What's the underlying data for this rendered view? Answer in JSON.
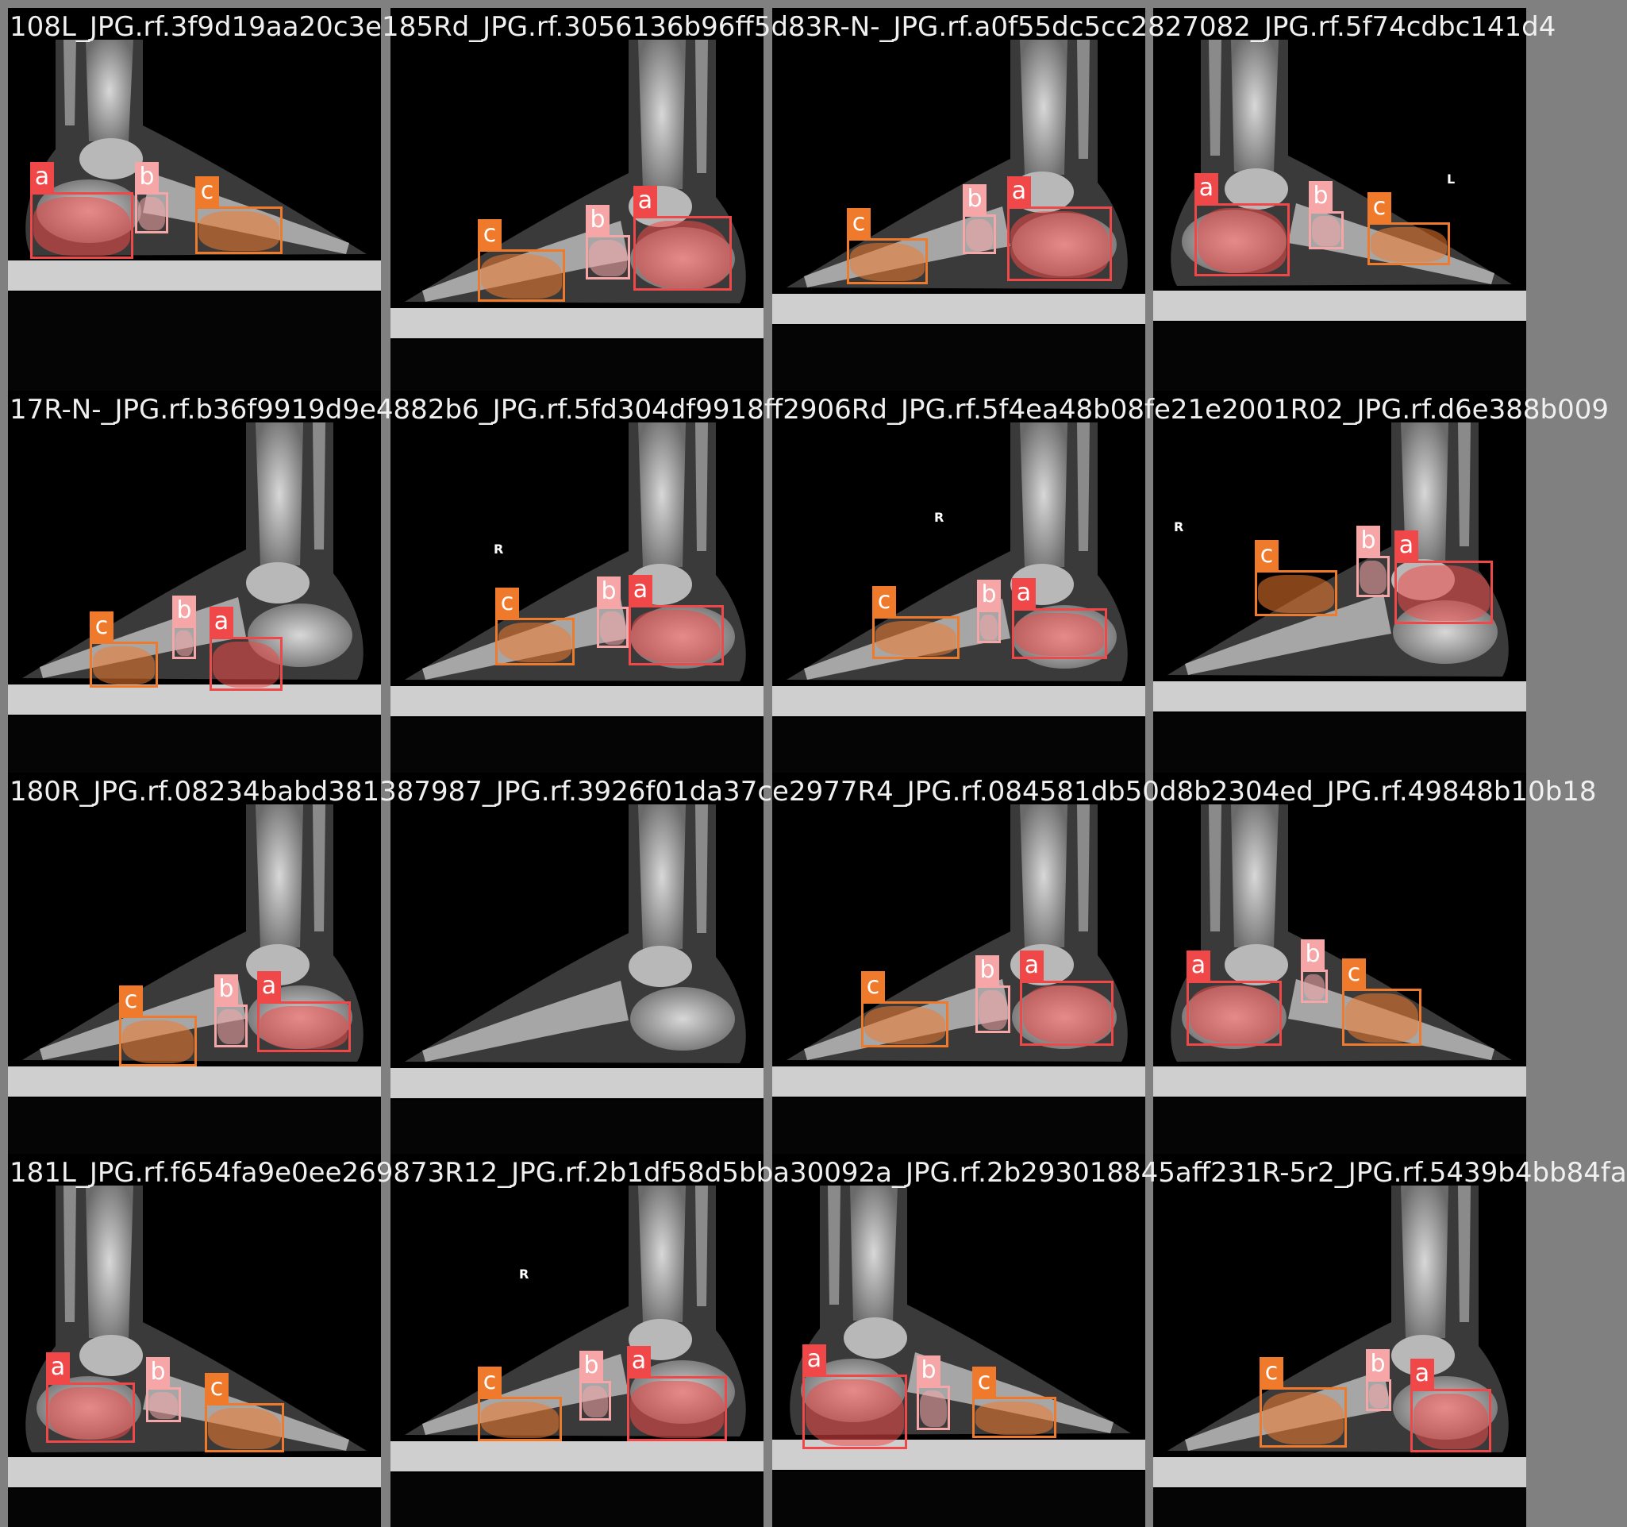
{
  "colors": {
    "a": "#f04848",
    "b": "#f6a6a6",
    "c": "#f07a2c",
    "grid": "#808080"
  },
  "tiles": [
    {
      "title": "108L_JPG.rf.3f9d19aa20c3e185Rd_JPG.rf.3056136b96ff5d83R-N-_JPG.rf.a0f55dc5cc2827082_JPG.rf.5f74cdbc141d4",
      "foot": "left",
      "marker": "",
      "labels": [
        "a",
        "b",
        "c"
      ]
    },
    {
      "title": "",
      "foot": "right",
      "marker": "",
      "labels": [
        "a",
        "b",
        "c"
      ]
    },
    {
      "title": "",
      "foot": "right",
      "marker": "",
      "labels": [
        "a",
        "b",
        "c"
      ]
    },
    {
      "title": "",
      "foot": "left",
      "marker": "L",
      "labels": [
        "a",
        "b",
        "c"
      ]
    },
    {
      "title": "17R-N-_JPG.rf.b36f9919d9e4882b6_JPG.rf.5fd304df9918ff2906Rd_JPG.rf.5f4ea48b08fe21e2001R02_JPG.rf.d6e388b009",
      "foot": "right",
      "marker": "",
      "labels": [
        "a",
        "b",
        "c"
      ]
    },
    {
      "title": "",
      "foot": "right",
      "marker": "R",
      "labels": [
        "a",
        "b",
        "c"
      ]
    },
    {
      "title": "",
      "foot": "right",
      "marker": "R",
      "labels": [
        "a",
        "b",
        "c"
      ]
    },
    {
      "title": "",
      "foot": "right",
      "marker": "R",
      "labels": [
        "a",
        "b",
        "c"
      ]
    },
    {
      "title": "180R_JPG.rf.08234babd381387987_JPG.rf.3926f01da37ce2977R4_JPG.rf.084581db50d8b2304ed_JPG.rf.49848b10b18",
      "foot": "right",
      "marker": "",
      "labels": [
        "a",
        "b",
        "c"
      ]
    },
    {
      "title": "",
      "foot": "right",
      "marker": "",
      "labels": []
    },
    {
      "title": "",
      "foot": "right",
      "marker": "",
      "labels": [
        "a",
        "b",
        "c"
      ]
    },
    {
      "title": "",
      "foot": "left",
      "marker": "",
      "labels": [
        "a",
        "b",
        "c"
      ]
    },
    {
      "title": "181L_JPG.rf.f654fa9e0ee269873R12_JPG.rf.2b1df58d5bba30092a_JPG.rf.2b293018845aff231R-5r2_JPG.rf.5439b4bb84fa",
      "foot": "left",
      "marker": "",
      "labels": [
        "a",
        "b",
        "c"
      ]
    },
    {
      "title": "",
      "foot": "right",
      "marker": "R",
      "labels": [
        "a",
        "b",
        "c"
      ]
    },
    {
      "title": "",
      "foot": "left",
      "marker": "",
      "labels": [
        "a",
        "b",
        "c"
      ]
    },
    {
      "title": "",
      "foot": "right",
      "marker": "",
      "labels": [
        "a",
        "b",
        "c"
      ]
    }
  ]
}
